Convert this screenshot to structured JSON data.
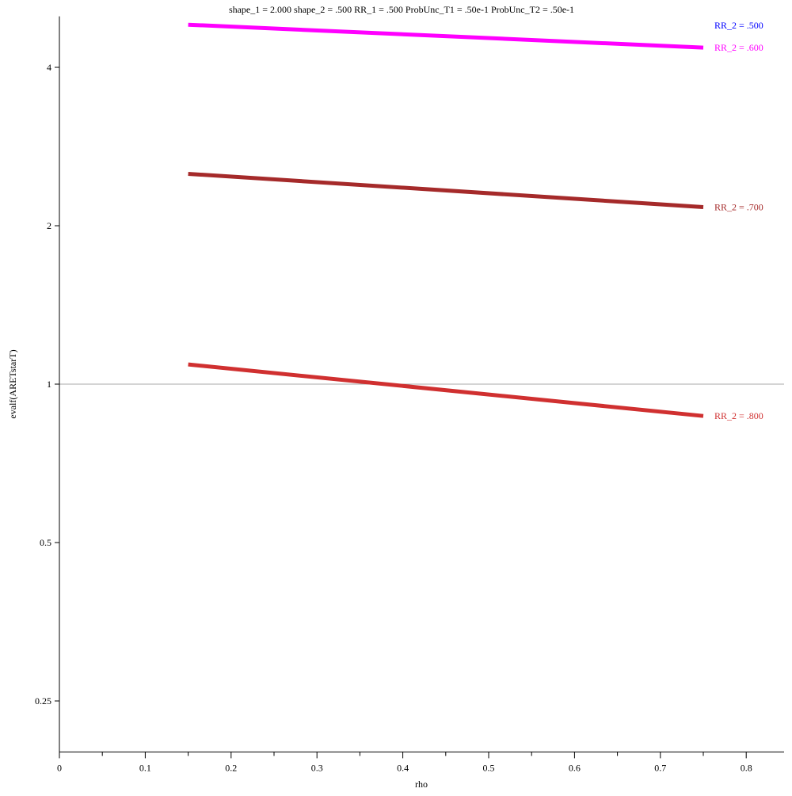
{
  "chart_data": {
    "type": "line",
    "title": "shape_1 = 2.000  shape_2 = .500  RR_1 = .500  ProbUnc_T1 = .50e-1  ProbUnc_T2 = .50e-1",
    "xlabel": "rho",
    "ylabel": "evalf(ARETstarT)",
    "xlim": [
      0,
      0.85
    ],
    "ylim": [
      0.2,
      5
    ],
    "yscale": "log",
    "grid": false,
    "reference_line_y": 1,
    "x_ticks": [
      0,
      0.1,
      0.2,
      0.3,
      0.4,
      0.5,
      0.6,
      0.7,
      0.8
    ],
    "x_tick_labels": [
      "0",
      "0.1",
      "0.2",
      "0.3",
      "0.4",
      "0.5",
      "0.6",
      "0.7",
      "0.8"
    ],
    "y_ticks": [
      0.25,
      0.5,
      1,
      2,
      4
    ],
    "y_tick_labels": [
      "0.25",
      "0.5",
      "1",
      "2",
      "4"
    ],
    "legend_placement": "right",
    "series": [
      {
        "name": "RR_2 = .500",
        "color": "#0000ff",
        "x": [],
        "y": []
      },
      {
        "name": "RR_2 = .600",
        "color": "#ff00ff",
        "x": [
          0.15,
          0.75
        ],
        "y": [
          4.82,
          4.36
        ]
      },
      {
        "name": "RR_2 = .700",
        "color": "#a52a2a",
        "x": [
          0.15,
          0.75
        ],
        "y": [
          2.51,
          2.17
        ]
      },
      {
        "name": "RR_2 = .800",
        "color": "#d03030",
        "x": [
          0.15,
          0.75
        ],
        "y": [
          1.09,
          0.87
        ]
      }
    ]
  }
}
